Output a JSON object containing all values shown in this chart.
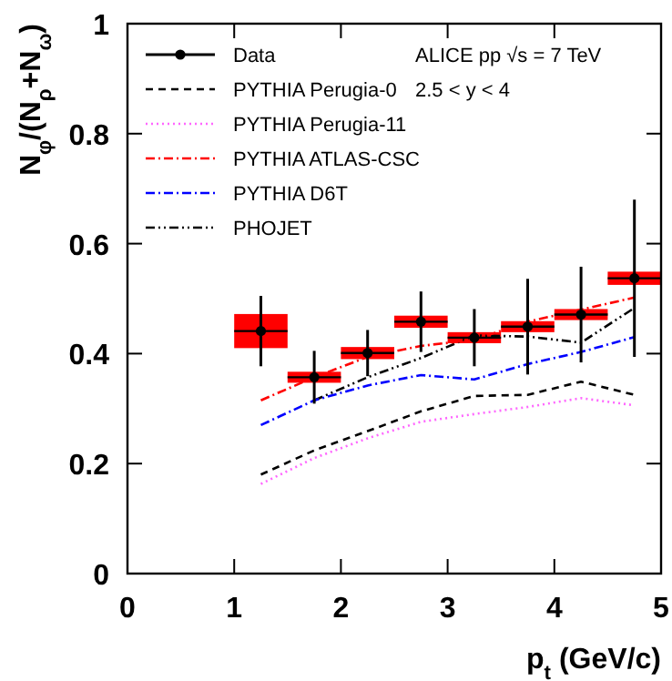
{
  "chart_data": {
    "type": "line",
    "xlabel": "p$_{t}$ (GeV/c)",
    "ylabel": "N$_{φ}$/(N$_{ρ}$+N$_{ω}$)",
    "x": [
      1.25,
      1.75,
      2.25,
      2.75,
      3.25,
      3.75,
      4.25,
      4.75
    ],
    "xlim": [
      0,
      5
    ],
    "xticks": [
      0,
      1,
      2,
      3,
      4,
      5
    ],
    "ylim": [
      0,
      1
    ],
    "yticks": [
      0,
      0.2,
      0.4,
      0.6,
      0.8,
      1
    ],
    "legend": "top left",
    "annotations": [
      "ALICE pp √s = 7 TeV",
      "2.5 < y < 4"
    ],
    "series": [
      {
        "type": "bar",
        "color": "#ff0000",
        "base": [
          0.41,
          0.347,
          0.39,
          0.447,
          0.419,
          0.439,
          0.461,
          0.525
        ],
        "values": [
          0.062,
          0.02,
          0.022,
          0.022,
          0.02,
          0.02,
          0.02,
          0.024
        ]
      },
      {
        "name": "PYTHIA Perugia-0",
        "color": "#000000",
        "line_style": "dashed",
        "values": [
          0.18,
          0.224,
          0.259,
          0.295,
          0.323,
          0.325,
          0.349,
          0.325
        ]
      },
      {
        "name": "PYTHIA Perugia-11",
        "color": "#ff66ff",
        "line_style": "dotted",
        "values": [
          0.163,
          0.21,
          0.246,
          0.276,
          0.29,
          0.303,
          0.319,
          0.306
        ]
      },
      {
        "name": "PYTHIA ATLAS-CSC",
        "color": "#ff0000",
        "line_style": "dashdot",
        "values": [
          0.315,
          0.357,
          0.394,
          0.414,
          0.425,
          0.458,
          0.48,
          0.502
        ]
      },
      {
        "name": "PYTHIA D6T",
        "color": "#0000ff",
        "line_style": "dashdot",
        "values": [
          0.27,
          0.315,
          0.342,
          0.361,
          0.353,
          0.381,
          0.403,
          0.43
        ]
      },
      {
        "name": "PHOJET",
        "color": "#000000",
        "line_style": "dashdotdot",
        "values": [
          null,
          0.315,
          0.357,
          0.392,
          0.433,
          0.431,
          0.42,
          0.483
        ]
      },
      {
        "name": "Data",
        "type": "scatter",
        "marker": "circle",
        "color": "#000000",
        "values": [
          0.441,
          0.357,
          0.401,
          0.458,
          0.429,
          0.449,
          0.471,
          0.537
        ],
        "errors": [
          0.064,
          0.048,
          0.042,
          0.055,
          0.052,
          0.087,
          0.087,
          0.143
        ],
        "xerrors": [
          0.25,
          0.25,
          0.25,
          0.25,
          0.25,
          0.25,
          0.25,
          0.25
        ]
      }
    ]
  }
}
